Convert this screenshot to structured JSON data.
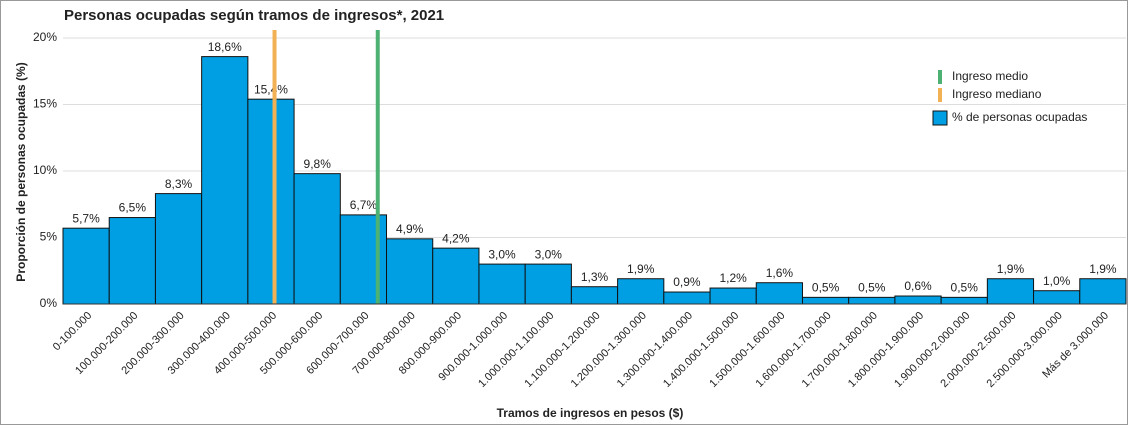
{
  "chart_data": {
    "type": "bar",
    "title": "Personas ocupadas según tramos de ingresos*, 2021",
    "x_label": "Tramos de ingresos en pesos ($)",
    "y_label": "Proporción de personas ocupadas (%)",
    "categories": [
      "0-100.000",
      "100.000-200.000",
      "200.000-300.000",
      "300.000-400.000",
      "400.000-500.000",
      "500.000-600.000",
      "600.000-700.000",
      "700.000-800.000",
      "800.000-900.000",
      "900.000-1.000.000",
      "1.000.000-1.100.000",
      "1.100.000-1.200.000",
      "1.200.000-1.300.000",
      "1.300.000-1.400.000",
      "1.400.000-1.500.000",
      "1.500.000-1.600.000",
      "1.600.000-1.700.000",
      "1.700.000-1.800.000",
      "1.800.000-1.900.000",
      "1.900.000-2.000.000",
      "2.000.000-2.500.000",
      "2.500.000-3.000.000",
      "Más de 3.000.000"
    ],
    "series": [
      {
        "name": "% de personas ocupadas",
        "color": "#009fe3",
        "values": [
          5.7,
          6.5,
          8.3,
          18.6,
          15.4,
          9.8,
          6.7,
          4.9,
          4.2,
          3.0,
          3.0,
          1.3,
          1.9,
          0.9,
          1.2,
          1.6,
          0.5,
          0.5,
          0.6,
          0.5,
          1.9,
          1.0,
          1.9
        ],
        "value_labels": [
          "5,7%",
          "6,5%",
          "8,3%",
          "18,6%",
          "15,4%",
          "9,8%",
          "6,7%",
          "4,9%",
          "4,2%",
          "3,0%",
          "3,0%",
          "1,3%",
          "1,9%",
          "0,9%",
          "1,2%",
          "1,6%",
          "0,5%",
          "0,5%",
          "0,6%",
          "0,5%",
          "1,9%",
          "1,0%",
          "1,9%"
        ]
      }
    ],
    "reference_lines": [
      {
        "name": "Ingreso medio",
        "color": "#4db173",
        "x": 681039
      },
      {
        "name": "Ingreso mediano",
        "color": "#f2b154",
        "x": 457690
      }
    ],
    "bin_width": 100000,
    "ylim": [
      0,
      20.6
    ],
    "yticks": [
      {
        "value": 0,
        "label": "0%"
      },
      {
        "value": 5,
        "label": "5%"
      },
      {
        "value": 10,
        "label": "10%"
      },
      {
        "value": 15,
        "label": "15%"
      },
      {
        "value": 20,
        "label": "20%"
      }
    ],
    "grid": true
  }
}
